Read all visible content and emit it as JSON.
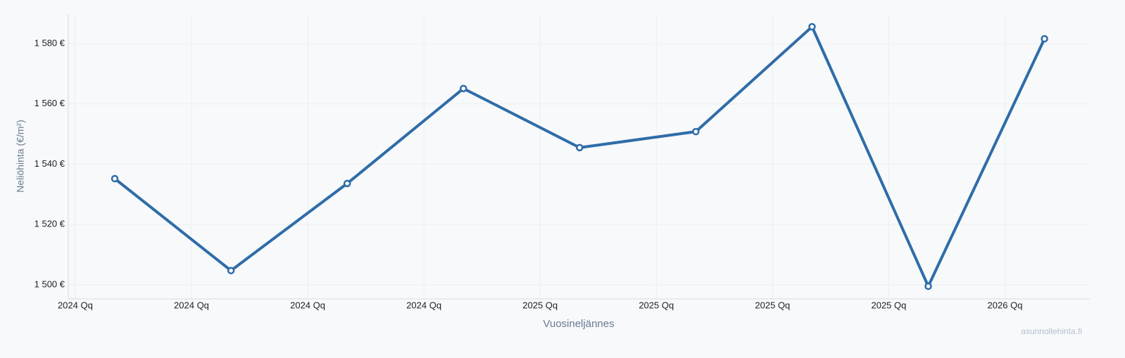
{
  "chart_data": {
    "type": "line",
    "y_label": "Neliöhinta (€/m²)",
    "x_label": "Vuosineljännes",
    "watermark": "asunnollehinta.fi",
    "x": [
      0.34,
      1.34,
      2.34,
      3.34,
      4.34,
      5.34,
      6.34,
      7.34,
      8.34
    ],
    "series": [
      {
        "color": "#2f6ca8",
        "values": [
          1535.2,
          1504.7,
          1533.6,
          1565.1,
          1545.5,
          1550.8,
          1585.6,
          1499.5,
          1581.6
        ]
      }
    ],
    "xlim": [
      -0.06,
      8.73
    ],
    "xticks": [
      {
        "value": 0,
        "label": "2024 Qq"
      },
      {
        "value": 1,
        "label": "2024 Qq"
      },
      {
        "value": 2,
        "label": "2024 Qq"
      },
      {
        "value": 3,
        "label": "2024 Qq"
      },
      {
        "value": 4,
        "label": "2025 Qq"
      },
      {
        "value": 5,
        "label": "2025 Qq"
      },
      {
        "value": 6,
        "label": "2025 Qq"
      },
      {
        "value": 7,
        "label": "2025 Qq"
      },
      {
        "value": 8,
        "label": "2026 Qq"
      }
    ],
    "ylim": [
      1495.3,
      1589.8
    ],
    "yticks": [
      {
        "value": 1500,
        "label": "1 500 €"
      },
      {
        "value": 1520,
        "label": "1 520 €"
      },
      {
        "value": 1540,
        "label": "1 540 €"
      },
      {
        "value": 1560,
        "label": "1 560 €"
      },
      {
        "value": 1580,
        "label": "1 580 €"
      }
    ],
    "grid": true
  }
}
